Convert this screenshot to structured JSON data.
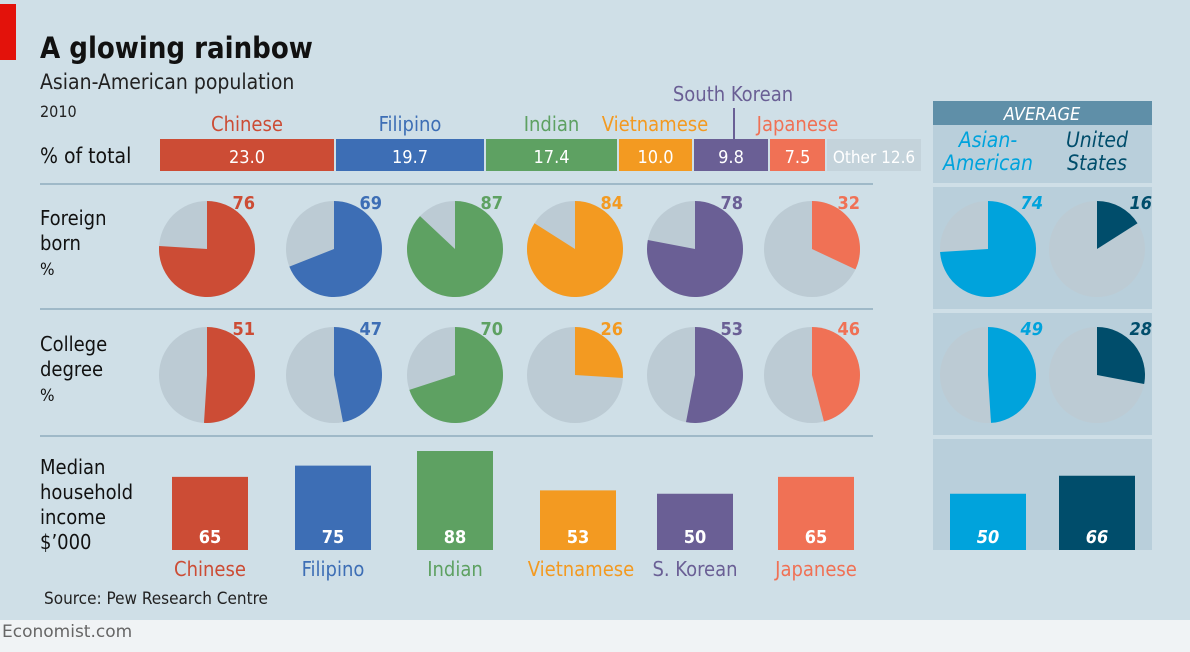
{
  "title": "A glowing rainbow",
  "subtitle": "Asian-American population",
  "year": "2010",
  "source": "Source: Pew Research Centre",
  "footer": "Economist.com",
  "chart_data": {
    "type": "composite",
    "groups": [
      "Chinese",
      "Filipino",
      "Indian",
      "Vietnamese",
      "South Korean",
      "Japanese"
    ],
    "short_labels": [
      "Chinese",
      "Filipino",
      "Indian",
      "Vietnamese",
      "S. Korean",
      "Japanese"
    ],
    "colors": [
      "#cc4c35",
      "#3d6eb5",
      "#5ea162",
      "#f39a21",
      "#6a5f95",
      "#f07155"
    ],
    "share": {
      "label": "% of total",
      "values": [
        23.0,
        19.7,
        17.4,
        10.0,
        9.8,
        7.5
      ],
      "other_label": "Other",
      "other_value": 12.6
    },
    "rows": [
      {
        "label": [
          "Foreign",
          "born",
          "%"
        ],
        "type": "pie",
        "values": [
          76,
          69,
          87,
          84,
          78,
          32
        ],
        "average": [
          74,
          16
        ]
      },
      {
        "label": [
          "College",
          "degree",
          "%"
        ],
        "type": "pie",
        "values": [
          51,
          47,
          70,
          26,
          53,
          46
        ],
        "average": [
          49,
          28
        ]
      },
      {
        "label": [
          "Median",
          "household",
          "income",
          "$’000"
        ],
        "type": "bar",
        "values": [
          65,
          75,
          88,
          53,
          50,
          65
        ],
        "average": [
          50,
          66
        ]
      }
    ],
    "average": {
      "header": "AVERAGE",
      "names": [
        [
          "Asian-",
          "American"
        ],
        [
          "United",
          "States"
        ]
      ],
      "colors": [
        "#00a3dc",
        "#004d6b"
      ]
    },
    "other_color": "#c4d3db",
    "pie_bg": "#bccbd4"
  }
}
